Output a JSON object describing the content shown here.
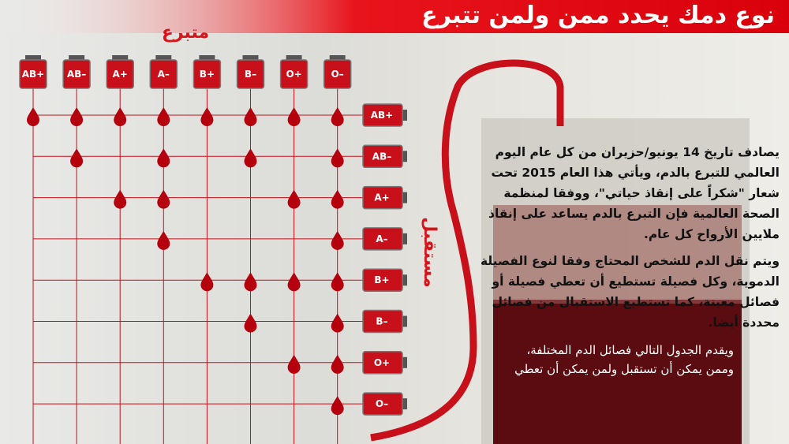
{
  "title": "نوع دمك يحدد ممن ولمن تتبرع",
  "donor_label": "متبرع",
  "recipient_label": "مستقبل",
  "donors": [
    "AB+",
    "AB–",
    "A+",
    "A–",
    "B+",
    "B–",
    "O+",
    "O–"
  ],
  "recipients": [
    "AB+",
    "AB–",
    "A+",
    "A–",
    "B+",
    "B–",
    "O+",
    "O–"
  ],
  "compatibility": [
    [
      1,
      1,
      1,
      1,
      1,
      1,
      1,
      1
    ],
    [
      0,
      1,
      0,
      1,
      0,
      1,
      0,
      1
    ],
    [
      0,
      0,
      1,
      1,
      0,
      0,
      1,
      1
    ],
    [
      0,
      0,
      0,
      1,
      0,
      0,
      0,
      1
    ],
    [
      0,
      0,
      0,
      0,
      1,
      1,
      1,
      1
    ],
    [
      0,
      0,
      0,
      0,
      0,
      1,
      0,
      1
    ],
    [
      0,
      0,
      0,
      0,
      0,
      0,
      1,
      1
    ],
    [
      0,
      0,
      0,
      0,
      0,
      0,
      0,
      1
    ]
  ],
  "paragraphs": [
    "يصادف تاريخ 14 يونيو/حزيران من كل عام اليوم العالمي للتبرع بالدم، ويأتي هذا العام 2015 تحت شعار \"شكراً على إنقاذ حياتي\"، ووفقا لمنظمة الصحة العالمية فإن التبرع بالدم يساعد على إنقاذ ملايين الأرواح كل عام.",
    "ويتم نقل الدم للشخص المحتاج وفقا لنوع الفصيلة الدموية، وكل فصيلة تستطيع أن تعطي فصيلة أو فصائل معينة، كما تستطيع الاستقبال من فصائل محددة أيضا.",
    "ويقدم الجدول التالي فصائل الدم المختلفة، وممن يمكن أن تستقبل ولمن يمكن أن تعطي"
  ]
}
